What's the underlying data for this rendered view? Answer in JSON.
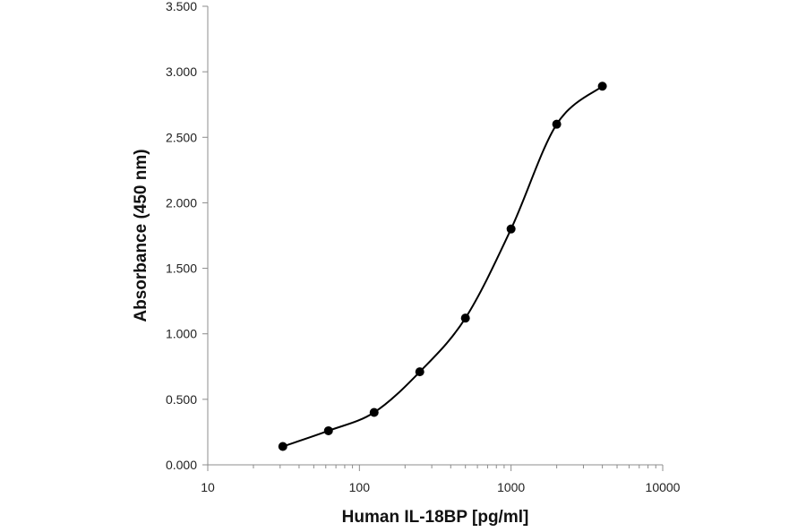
{
  "chart_data": {
    "type": "scatter",
    "title": "",
    "xlabel": "Human IL-18BP [pg/ml]",
    "ylabel": "Absorbance (450 nm)",
    "xscale": "log",
    "xlim": [
      10,
      10000
    ],
    "ylim": [
      0,
      3.5
    ],
    "x_ticks": [
      10,
      100,
      1000,
      10000
    ],
    "x_tick_labels": [
      "10",
      "100",
      "1000",
      "10000"
    ],
    "y_ticks": [
      0,
      0.5,
      1.0,
      1.5,
      2.0,
      2.5,
      3.0,
      3.5
    ],
    "y_tick_labels": [
      "0.000",
      "0.500",
      "1.000",
      "1.500",
      "2.000",
      "2.500",
      "3.000",
      "3.500"
    ],
    "grid": false,
    "legend": "none",
    "series": [
      {
        "x": [
          31.25,
          62.5,
          125,
          250,
          500,
          1000,
          2000,
          4000
        ],
        "y": [
          0.14,
          0.26,
          0.4,
          0.71,
          1.12,
          1.8,
          2.6,
          2.89
        ],
        "line": "smooth",
        "marker": "circle",
        "color": "#000000"
      }
    ]
  }
}
